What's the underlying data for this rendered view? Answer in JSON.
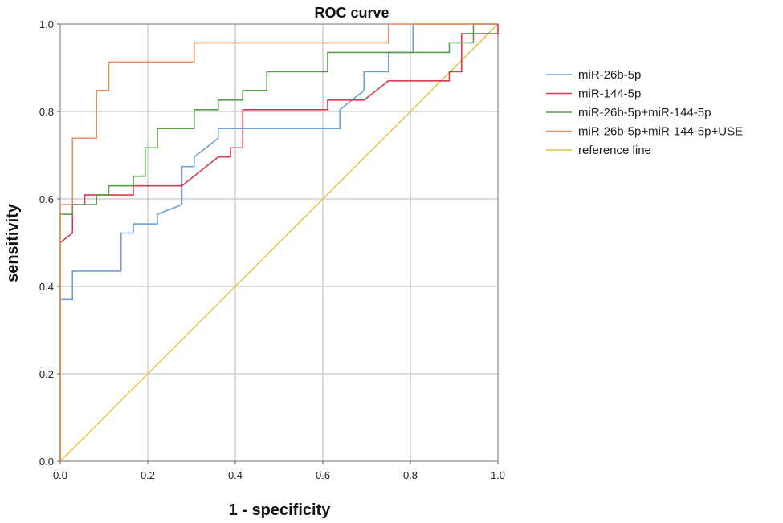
{
  "chart_data": {
    "type": "line",
    "title": "ROC curve",
    "xlabel": "1 - specificity",
    "ylabel": "sensitivity",
    "xlim": [
      0,
      1
    ],
    "ylim": [
      0,
      1
    ],
    "x_ticks": [
      "0.0",
      "0.2",
      "0.4",
      "0.6",
      "0.8",
      "1.0"
    ],
    "y_ticks": [
      "0.0",
      "0.2",
      "0.4",
      "0.6",
      "0.8",
      "1.0"
    ],
    "grid": true,
    "legend_position": "right",
    "series": [
      {
        "name": "miR-26b-5p",
        "color": "#6f9fd8",
        "points": [
          [
            0,
            0
          ],
          [
            0,
            0.37
          ],
          [
            0.028,
            0.37
          ],
          [
            0.028,
            0.435
          ],
          [
            0.139,
            0.435
          ],
          [
            0.139,
            0.522
          ],
          [
            0.167,
            0.522
          ],
          [
            0.167,
            0.543
          ],
          [
            0.222,
            0.543
          ],
          [
            0.222,
            0.565
          ],
          [
            0.278,
            0.587
          ],
          [
            0.278,
            0.674
          ],
          [
            0.306,
            0.674
          ],
          [
            0.306,
            0.696
          ],
          [
            0.361,
            0.739
          ],
          [
            0.361,
            0.761
          ],
          [
            0.639,
            0.761
          ],
          [
            0.639,
            0.804
          ],
          [
            0.694,
            0.848
          ],
          [
            0.694,
            0.891
          ],
          [
            0.75,
            0.891
          ],
          [
            0.75,
            0.935
          ],
          [
            0.806,
            0.935
          ],
          [
            0.806,
            1.0
          ],
          [
            1.0,
            1.0
          ]
        ]
      },
      {
        "name": "miR-144-5p",
        "color": "#d63b52",
        "points": [
          [
            0,
            0
          ],
          [
            0,
            0.5
          ],
          [
            0.028,
            0.522
          ],
          [
            0.028,
            0.587
          ],
          [
            0.056,
            0.587
          ],
          [
            0.056,
            0.609
          ],
          [
            0.167,
            0.609
          ],
          [
            0.167,
            0.63
          ],
          [
            0.278,
            0.63
          ],
          [
            0.361,
            0.696
          ],
          [
            0.389,
            0.696
          ],
          [
            0.389,
            0.717
          ],
          [
            0.417,
            0.717
          ],
          [
            0.417,
            0.804
          ],
          [
            0.611,
            0.804
          ],
          [
            0.611,
            0.826
          ],
          [
            0.694,
            0.826
          ],
          [
            0.75,
            0.87
          ],
          [
            0.889,
            0.87
          ],
          [
            0.889,
            0.891
          ],
          [
            0.917,
            0.891
          ],
          [
            0.917,
            0.978
          ],
          [
            1.0,
            0.978
          ],
          [
            1.0,
            1.0
          ]
        ]
      },
      {
        "name": "miR-26b-5p+miR-144-5p",
        "color": "#5a9f4a",
        "points": [
          [
            0,
            0
          ],
          [
            0,
            0.565
          ],
          [
            0.028,
            0.565
          ],
          [
            0.028,
            0.587
          ],
          [
            0.083,
            0.587
          ],
          [
            0.083,
            0.609
          ],
          [
            0.111,
            0.609
          ],
          [
            0.111,
            0.63
          ],
          [
            0.167,
            0.63
          ],
          [
            0.167,
            0.652
          ],
          [
            0.194,
            0.652
          ],
          [
            0.194,
            0.717
          ],
          [
            0.222,
            0.717
          ],
          [
            0.222,
            0.761
          ],
          [
            0.306,
            0.761
          ],
          [
            0.306,
            0.804
          ],
          [
            0.361,
            0.804
          ],
          [
            0.361,
            0.826
          ],
          [
            0.417,
            0.826
          ],
          [
            0.417,
            0.848
          ],
          [
            0.472,
            0.848
          ],
          [
            0.472,
            0.891
          ],
          [
            0.611,
            0.891
          ],
          [
            0.611,
            0.935
          ],
          [
            0.889,
            0.935
          ],
          [
            0.889,
            0.957
          ],
          [
            0.944,
            0.957
          ],
          [
            0.944,
            1.0
          ],
          [
            1.0,
            1.0
          ]
        ]
      },
      {
        "name": "miR-26b-5p+miR-144-5p+USE",
        "color": "#f28c5c",
        "points": [
          [
            0,
            0
          ],
          [
            0,
            0.587
          ],
          [
            0.028,
            0.587
          ],
          [
            0.028,
            0.739
          ],
          [
            0.083,
            0.739
          ],
          [
            0.083,
            0.848
          ],
          [
            0.111,
            0.848
          ],
          [
            0.111,
            0.913
          ],
          [
            0.306,
            0.913
          ],
          [
            0.306,
            0.957
          ],
          [
            0.75,
            0.957
          ],
          [
            0.75,
            1.0
          ],
          [
            1.0,
            1.0
          ]
        ]
      },
      {
        "name": "reference line",
        "color": "#e6c94a",
        "points": [
          [
            0,
            0
          ],
          [
            1,
            1
          ]
        ]
      }
    ]
  }
}
